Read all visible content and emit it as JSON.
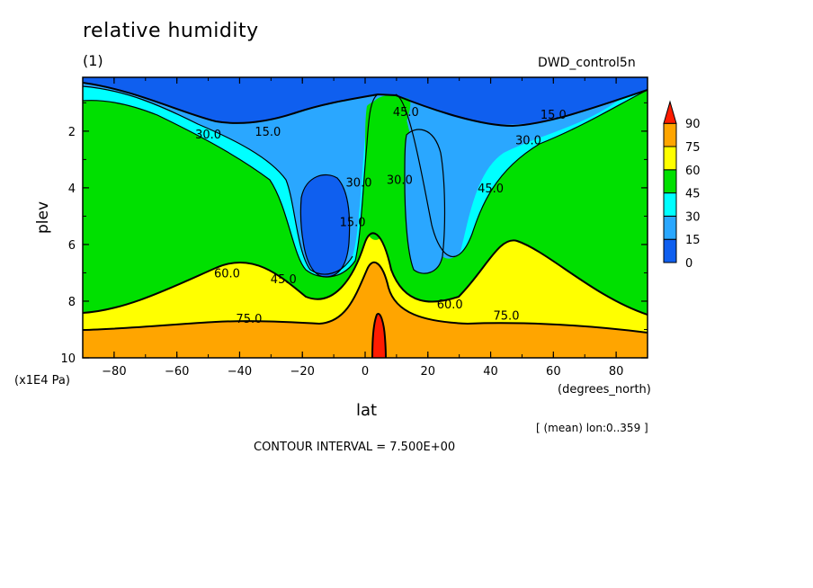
{
  "header": {
    "title": "relative humidity",
    "subtitle": "(1)",
    "dataset": "DWD_control5n"
  },
  "axes": {
    "ylabel": "plev",
    "yunit": "(x1E4 Pa)",
    "xlabel": "lat",
    "xunit": "(degrees_north)"
  },
  "footer": {
    "mean_note": "[ (mean) lon:0..359 ]",
    "contour_interval": "CONTOUR INTERVAL = 7.500E+00"
  },
  "colors": {
    "band_0_15": "#0f5fef",
    "band_15_30": "#2aa7ff",
    "band_30_45": "#00ffff",
    "band_45_60": "#00e000",
    "band_60_75": "#ffff00",
    "band_75_90": "#ffa500",
    "band_90_plus": "#ff1c00"
  },
  "chart_data": {
    "type": "heatmap",
    "title": "relative humidity",
    "xlabel": "lat",
    "ylabel": "plev",
    "xlim": [
      -90,
      90
    ],
    "ylim": [
      10,
      0.1
    ],
    "x_ticks": [
      -80,
      -60,
      -40,
      -20,
      0,
      20,
      40,
      60,
      80
    ],
    "y_ticks": [
      2,
      4,
      6,
      8,
      10
    ],
    "colorbar": {
      "levels": [
        0,
        15,
        30,
        45,
        60,
        75,
        90
      ],
      "labels": [
        "0",
        "15",
        "30",
        "45",
        "60",
        "75",
        "90"
      ],
      "extend": "max"
    },
    "contour_labels": [
      {
        "text": "15.0",
        "lat": -31,
        "plev": 2.0
      },
      {
        "text": "15.0",
        "lat": 60,
        "plev": 1.4
      },
      {
        "text": "30.0",
        "lat": -50,
        "plev": 2.1
      },
      {
        "text": "30.0",
        "lat": 52,
        "plev": 2.3
      },
      {
        "text": "30.0",
        "lat": -2,
        "plev": 3.8
      },
      {
        "text": "30.0",
        "lat": 11,
        "plev": 3.7
      },
      {
        "text": "15.0",
        "lat": -4,
        "plev": 5.2
      },
      {
        "text": "45.0",
        "lat": 13,
        "plev": 1.3
      },
      {
        "text": "45.0",
        "lat": 40,
        "plev": 4.0
      },
      {
        "text": "45.0",
        "lat": -26,
        "plev": 7.2
      },
      {
        "text": "60.0",
        "lat": -44,
        "plev": 7.0
      },
      {
        "text": "60.0",
        "lat": 27,
        "plev": 8.1
      },
      {
        "text": "75.0",
        "lat": -37,
        "plev": 8.6
      },
      {
        "text": "75.0",
        "lat": 45,
        "plev": 8.5
      }
    ]
  }
}
